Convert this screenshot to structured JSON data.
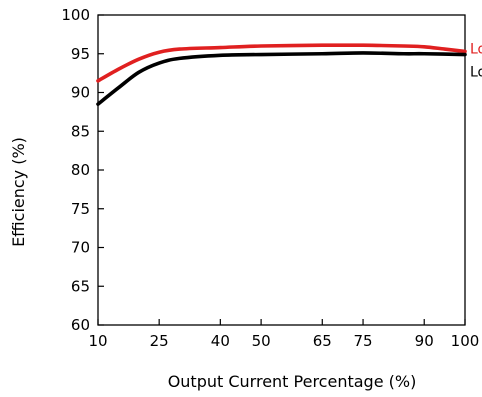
{
  "chart_data": {
    "type": "line",
    "xlabel": "Output Current Percentage  (%)",
    "ylabel": "Efficiency  (%)",
    "xlim": [
      10,
      100
    ],
    "ylim": [
      60,
      100
    ],
    "x_ticks": [
      10,
      25,
      40,
      50,
      65,
      75,
      90,
      100
    ],
    "y_ticks": [
      60,
      65,
      70,
      75,
      80,
      85,
      90,
      95,
      100
    ],
    "grid": false,
    "legend_position": "right",
    "series": [
      {
        "name": "Lo",
        "color": "#e02020",
        "points": [
          [
            10,
            91.5
          ],
          [
            15,
            93.0
          ],
          [
            20,
            94.3
          ],
          [
            25,
            95.2
          ],
          [
            30,
            95.6
          ],
          [
            40,
            95.8
          ],
          [
            50,
            96.0
          ],
          [
            65,
            96.1
          ],
          [
            75,
            96.1
          ],
          [
            85,
            96.0
          ],
          [
            90,
            95.9
          ],
          [
            95,
            95.6
          ],
          [
            100,
            95.3
          ]
        ]
      },
      {
        "name": "Lo",
        "color": "#000000",
        "points": [
          [
            10,
            88.5
          ],
          [
            15,
            90.6
          ],
          [
            20,
            92.6
          ],
          [
            25,
            93.8
          ],
          [
            30,
            94.4
          ],
          [
            40,
            94.8
          ],
          [
            50,
            94.9
          ],
          [
            65,
            95.0
          ],
          [
            75,
            95.1
          ],
          [
            85,
            95.0
          ],
          [
            90,
            95.0
          ],
          [
            100,
            94.9
          ]
        ]
      }
    ]
  }
}
